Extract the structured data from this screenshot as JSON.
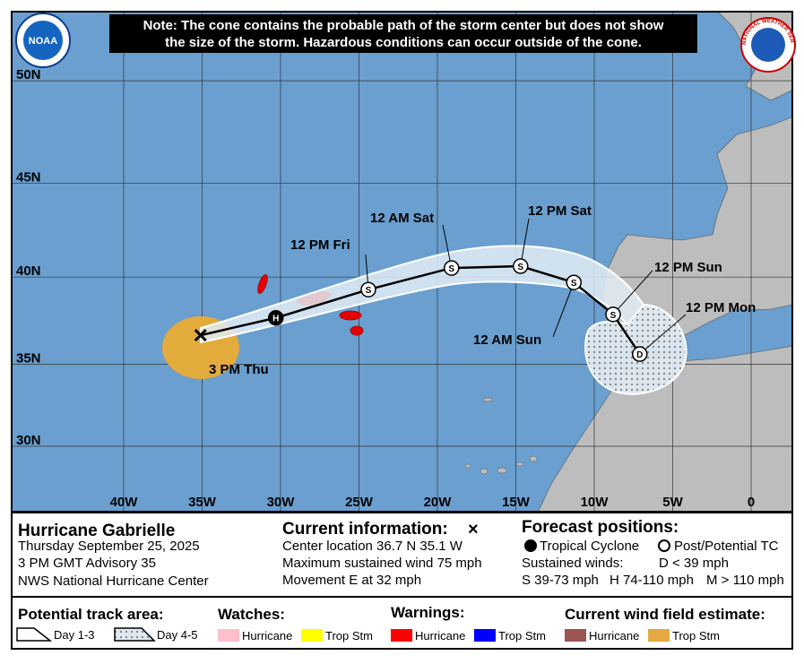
{
  "note": {
    "lines": [
      "Note: The cone contains the probable path of the storm center but does not show",
      "the size of the storm. Hazardous conditions can occur outside of the cone."
    ]
  },
  "logos": {
    "noaa": "NOAA",
    "nws": "NATIONAL WEATHER SERVICE"
  },
  "map": {
    "latitudes": [
      {
        "value": 50,
        "label": "50N"
      },
      {
        "value": 45,
        "label": "45N"
      },
      {
        "value": 40,
        "label": "40N"
      },
      {
        "value": 35,
        "label": "35N"
      },
      {
        "value": 30,
        "label": "30N"
      }
    ],
    "longitudes": [
      {
        "value": -40,
        "label": "40W"
      },
      {
        "value": -35,
        "label": "35W"
      },
      {
        "value": -30,
        "label": "30W"
      },
      {
        "value": -25,
        "label": "25W"
      },
      {
        "value": -20,
        "label": "20W"
      },
      {
        "value": -15,
        "label": "15W"
      },
      {
        "value": -10,
        "label": "10W"
      },
      {
        "value": -5,
        "label": "5W"
      },
      {
        "value": 0,
        "label": "0"
      }
    ],
    "track": [
      {
        "lat": 36.7,
        "lon": -35.1,
        "label": "3 PM Thu"
      },
      {
        "lat": 37.7,
        "lon": -30.3,
        "symbol": "H"
      },
      {
        "lat": 39.3,
        "lon": -24.4,
        "symbol": "S",
        "label": "12 PM Fri"
      },
      {
        "lat": 40.5,
        "lon": -19.1,
        "symbol": "S",
        "label": "12 AM Sat"
      },
      {
        "lat": 40.6,
        "lon": -14.7,
        "symbol": "S",
        "label": "12 PM Sat"
      },
      {
        "lat": 39.7,
        "lon": -11.3,
        "symbol": "S",
        "label": "12 AM Sun"
      },
      {
        "lat": 37.9,
        "lon": -8.8,
        "symbol": "S",
        "label": "12 PM Sun"
      },
      {
        "lat": 35.6,
        "lon": -7.1,
        "symbol": "D",
        "label": "12 PM Mon"
      }
    ]
  },
  "info": {
    "storm": "Hurricane Gabrielle",
    "date": "Thursday September 25, 2025",
    "advisory": "3 PM GMT Advisory 35",
    "center": "NWS National Hurricane Center",
    "current": {
      "title": "Current information:",
      "marker": "×",
      "lines": [
        "Center location 36.7 N 35.1 W",
        "Maximum sustained wind 75 mph",
        "Movement E at 32 mph"
      ]
    },
    "forecast": {
      "title": "Forecast positions:",
      "tropical": "Tropical Cyclone",
      "post": "Post/Potential TC",
      "winds": "Sustained winds:",
      "d": "D < 39 mph",
      "s": "S 39-73 mph",
      "h": "H 74-110 mph",
      "m": "M > 110 mph"
    }
  },
  "legend": {
    "track_area": {
      "title": "Potential track area:",
      "day13": "Day 1-3",
      "day45": "Day 4-5"
    },
    "watches": {
      "title": "Watches:",
      "hurricane": "Hurricane",
      "trop": "Trop Stm"
    },
    "warnings": {
      "title": "Warnings:",
      "hurricane": "Hurricane",
      "trop": "Trop Stm"
    },
    "wind": {
      "title": "Current wind field estimate:",
      "hurricane": "Hurricane",
      "trop": "Trop Stm"
    }
  }
}
